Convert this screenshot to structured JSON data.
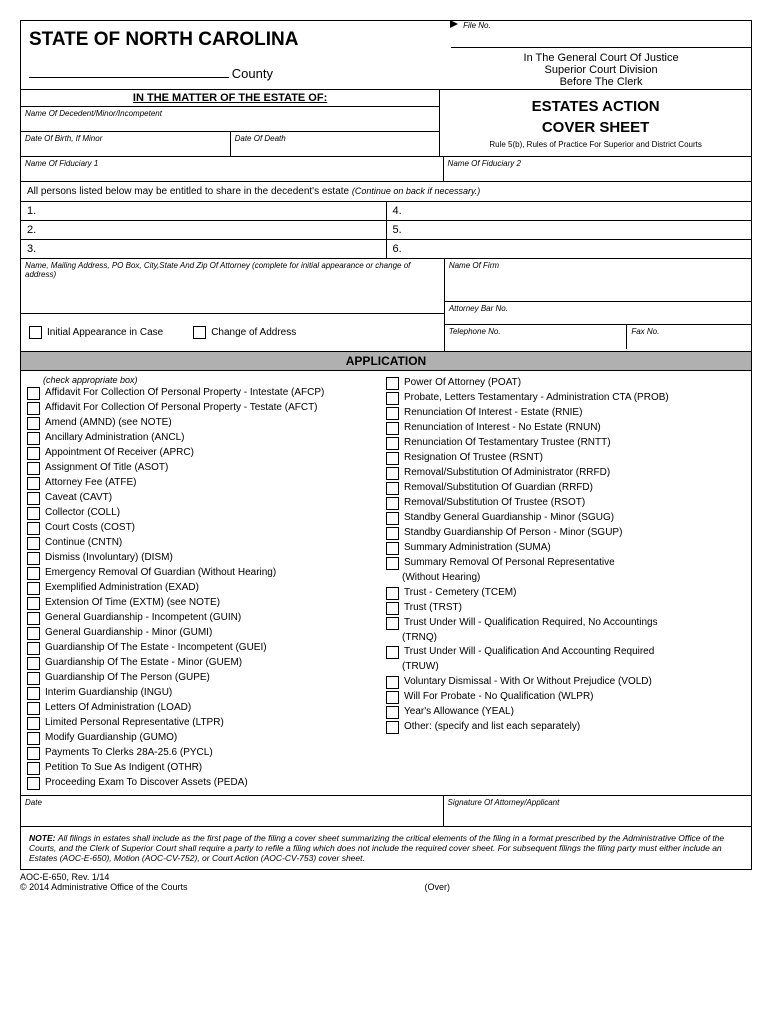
{
  "header": {
    "state_title": "STATE OF NORTH CAROLINA",
    "county_label": "County",
    "file_no_label": "File No.",
    "court_line1": "In The General Court Of Justice",
    "court_line2": "Superior Court Division",
    "court_line3": "Before The Clerk"
  },
  "matter": {
    "section_title": "IN THE MATTER OF THE ESTATE OF:",
    "name_decedent_label": "Name Of Decedent/Minor/Incompetent",
    "dob_label": "Date Of Birth, If Minor",
    "dod_label": "Date Of Death",
    "fiduciary1_label": "Name Of Fiduciary 1",
    "fiduciary2_label": "Name Of Fiduciary 2",
    "estates_action": "ESTATES ACTION",
    "cover_sheet": "COVER SHEET",
    "rule_text": "Rule 5(b), Rules of Practice For Superior and District Courts"
  },
  "persons": {
    "intro": "All persons listed below may be entitled to share in the decedent's estate",
    "intro_note": "(Continue on back if necessary.)",
    "nums_left": [
      "1.",
      "2.",
      "3."
    ],
    "nums_right": [
      "4.",
      "5.",
      "6."
    ]
  },
  "attorney": {
    "address_label": "Name, Mailing Address, PO Box, City,State And Zip Of Attorney (complete for initial appearance or change of address)",
    "firm_label": "Name Of Firm",
    "bar_label": "Attorney Bar No.",
    "initial_appearance": "Initial Appearance in Case",
    "change_address": "Change of Address",
    "telephone_label": "Telephone No.",
    "fax_label": "Fax No."
  },
  "application": {
    "header": "APPLICATION",
    "check_label": "(check appropriate box)",
    "left_items": [
      "Affidavit For Collection Of Personal Property - Intestate (AFCP)",
      "Affidavit For Collection Of Personal Property - Testate (AFCT)",
      "Amend (AMND) (see NOTE)",
      "Ancillary Administration (ANCL)",
      "Appointment Of Receiver (APRC)",
      "Assignment Of Title (ASOT)",
      "Attorney Fee (ATFE)",
      "Caveat (CAVT)",
      "Collector (COLL)",
      "Court Costs (COST)",
      "Continue (CNTN)",
      "Dismiss (Involuntary) (DISM)",
      "Emergency Removal Of Guardian (Without Hearing)",
      "Exemplified Administration (EXAD)",
      "Extension Of Time (EXTM) (see NOTE)",
      "General Guardianship - Incompetent (GUIN)",
      "General Guardianship - Minor (GUMI)",
      "Guardianship Of The Estate - Incompetent (GUEI)",
      "Guardianship Of The Estate - Minor (GUEM)",
      "Guardianship Of The Person (GUPE)",
      "Interim Guardianship (INGU)",
      "Letters Of Administration (LOAD)",
      "Limited Personal Representative (LTPR)",
      "Modify Guardianship (GUMO)",
      "Payments To Clerks 28A-25.6 (PYCL)",
      "Petition To Sue As Indigent (OTHR)",
      "Proceeding Exam To Discover Assets (PEDA)"
    ],
    "right_items": [
      "Power Of Attorney (POAT)",
      "Probate, Letters Testamentary - Administration CTA (PROB)",
      "Renunciation Of Interest - Estate (RNIE)",
      "Renunciation of Interest - No Estate (RNUN)",
      "Renunciation Of Testamentary Trustee (RNTT)",
      "Resignation Of Trustee (RSNT)",
      "Removal/Substitution Of Administrator (RRFD)",
      "Removal/Substitution Of Guardian (RRFD)",
      "Removal/Substitution Of Trustee (RSOT)",
      "Standby General Guardianship - Minor (SGUG)",
      "Standby Guardianship Of Person - Minor (SGUP)",
      "Summary Administration (SUMA)",
      "Summary Removal Of Personal Representative"
    ],
    "right_indent1": "(Without Hearing)",
    "right_items2": [
      "Trust - Cemetery (TCEM)",
      "Trust (TRST)",
      "Trust Under Will - Qualification Required, No Accountings"
    ],
    "right_indent2": "(TRNQ)",
    "right_items3": [
      "Trust Under Will - Qualification And Accounting Required"
    ],
    "right_indent3": "(TRUW)",
    "right_items4": [
      "Voluntary Dismissal - With Or Without Prejudice (VOLD)",
      "Will For Probate - No Qualification (WLPR)",
      "Year's Allowance (YEAL)",
      "Other: (specify and list each separately)"
    ]
  },
  "signature": {
    "date_label": "Date",
    "sig_label": "Signature Of Attorney/Applicant"
  },
  "note": {
    "label": "NOTE:",
    "text": "All filings in estates shall include as the first page of the filing a cover sheet summarizing the critical elements of the filing in a format prescribed by the Administrative Office of the Courts, and the Clerk of Superior Court shall require a party to refile a filing which does not include the required cover sheet. For subsequent filings the filing party must either include an Estates (AOC-E-650), Motion (AOC-CV-752), or Court Action (AOC-CV-753) cover sheet."
  },
  "footer": {
    "form_id": "AOC-E-650, Rev. 1/14",
    "copyright": "© 2014 Administrative Office of the Courts",
    "over": "(Over)"
  }
}
